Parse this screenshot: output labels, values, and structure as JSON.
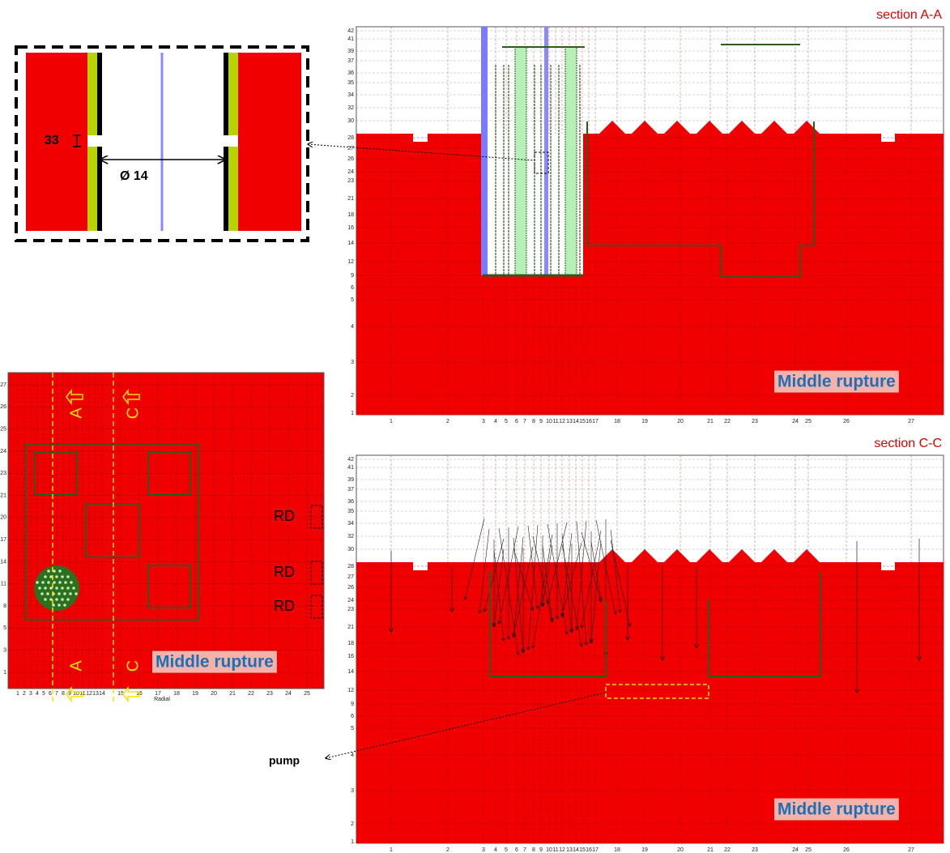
{
  "inset": {
    "dimension_height": "33",
    "dimension_diameter": "Ø 14"
  },
  "plan_view": {
    "section_labels": [
      "A",
      "C",
      "A",
      "C"
    ],
    "rd_labels": [
      "RD",
      "RD",
      "RD"
    ],
    "badge": "Middle rupture",
    "x_axis_label": "Radial",
    "xticks": [
      1,
      2,
      3,
      4,
      5,
      6,
      7,
      8,
      9,
      10,
      11,
      12,
      13,
      14,
      15,
      16,
      17,
      18,
      19,
      20,
      21,
      22,
      23,
      24,
      25
    ],
    "yticks": [
      1,
      3,
      5,
      8,
      11,
      14,
      17,
      20,
      21,
      23,
      24,
      25,
      26,
      27
    ]
  },
  "section_aa": {
    "title": "section A-A",
    "badge": "Middle rupture",
    "yticks": [
      1,
      2,
      3,
      4,
      5,
      6,
      9,
      12,
      14,
      16,
      18,
      21,
      23,
      24,
      26,
      27,
      28,
      30,
      32,
      34,
      35,
      36,
      37,
      39,
      41,
      42
    ],
    "xticks": [
      1,
      2,
      3,
      4,
      5,
      6,
      7,
      8,
      9,
      10,
      11,
      12,
      13,
      14,
      15,
      16,
      17,
      18,
      19,
      20,
      21,
      22,
      23,
      24,
      25,
      26,
      27
    ]
  },
  "section_cc": {
    "title": "section C-C",
    "badge": "Middle rupture",
    "annotation": "pump",
    "yticks": [
      1,
      2,
      3,
      4,
      5,
      6,
      9,
      12,
      14,
      16,
      18,
      21,
      23,
      24,
      26,
      27,
      28,
      30,
      32,
      34,
      35,
      36,
      37,
      39,
      41,
      42
    ],
    "xticks": [
      1,
      2,
      3,
      4,
      5,
      6,
      7,
      8,
      9,
      10,
      11,
      12,
      13,
      14,
      15,
      16,
      17,
      18,
      19,
      20,
      21,
      22,
      23,
      24,
      25,
      26,
      27
    ]
  }
}
